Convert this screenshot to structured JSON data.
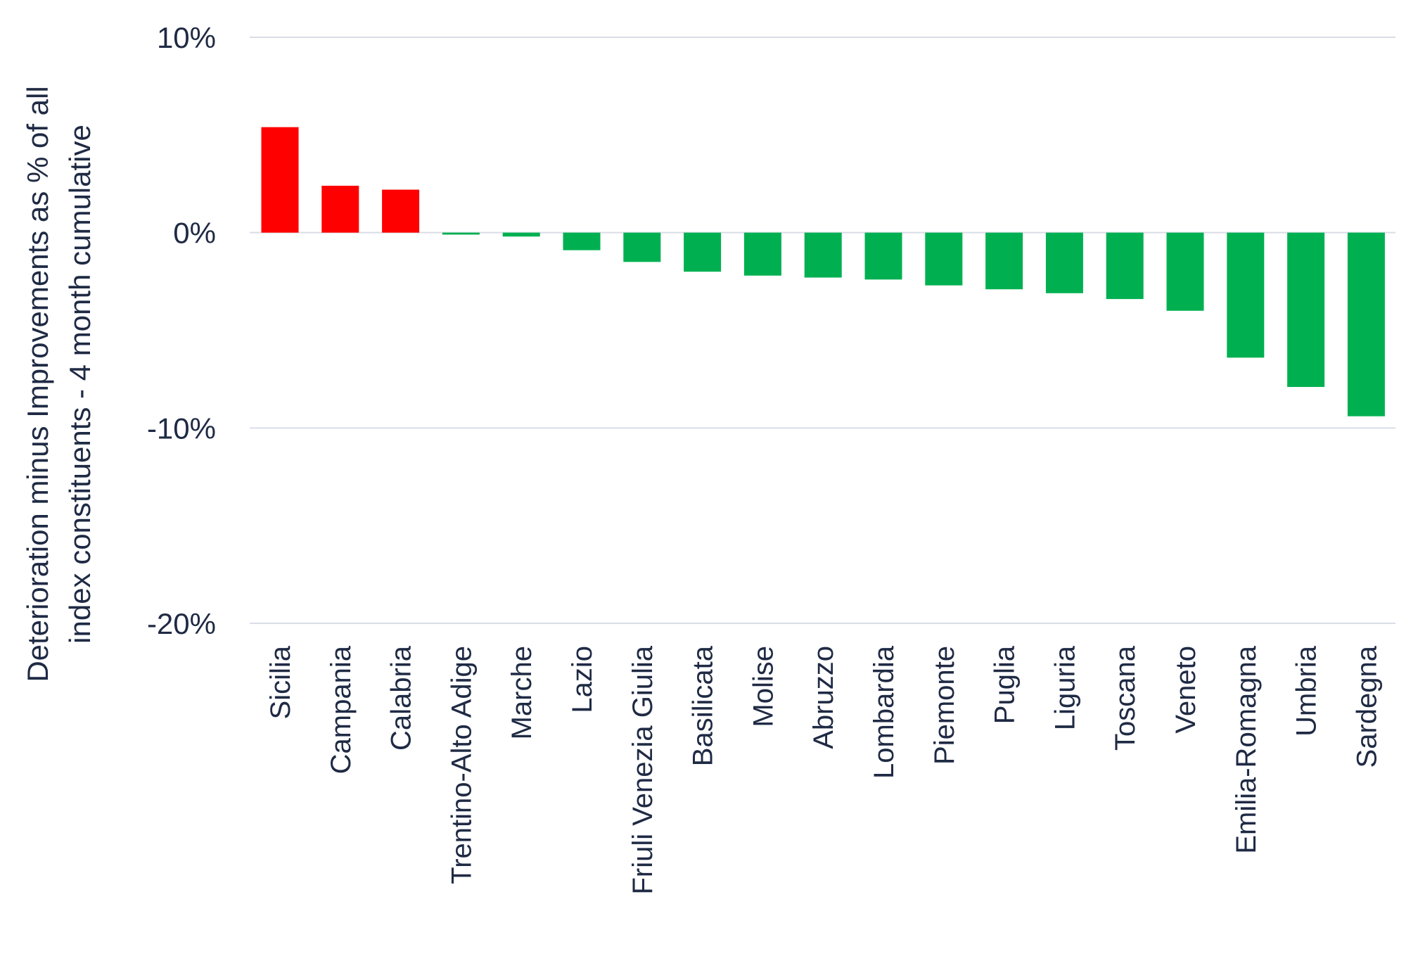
{
  "chart_data": {
    "type": "bar",
    "ylabel_lines": [
      "Deterioration minus Improvements as % of all",
      "index constituents - 4 month cumulative"
    ],
    "ylim": [
      -20,
      10
    ],
    "yticks": [
      10,
      0,
      -10,
      -20
    ],
    "ytick_labels": [
      "10%",
      "0%",
      "-10%",
      "-20%"
    ],
    "grid": true,
    "categories": [
      "Sicilia",
      "Campania",
      "Calabria",
      "Trentino-Alto Adige",
      "Marche",
      "Lazio",
      "Friuli Venezia Giulia",
      "Basilicata",
      "Molise",
      "Abruzzo",
      "Lombardia",
      "Piemonte",
      "Puglia",
      "Liguria",
      "Toscana",
      "Veneto",
      "Emilia-Romagna",
      "Umbria",
      "Sardegna"
    ],
    "values": [
      5.4,
      2.4,
      2.2,
      -0.1,
      -0.2,
      -0.9,
      -1.5,
      -2.0,
      -2.2,
      -2.3,
      -2.4,
      -2.7,
      -2.9,
      -3.1,
      -3.4,
      -4.0,
      -6.4,
      -7.9,
      -9.4
    ],
    "colors": {
      "positive": "#ff0000",
      "negative": "#00b050",
      "grid": "#d9dde6",
      "text": "#1f2a44"
    }
  }
}
